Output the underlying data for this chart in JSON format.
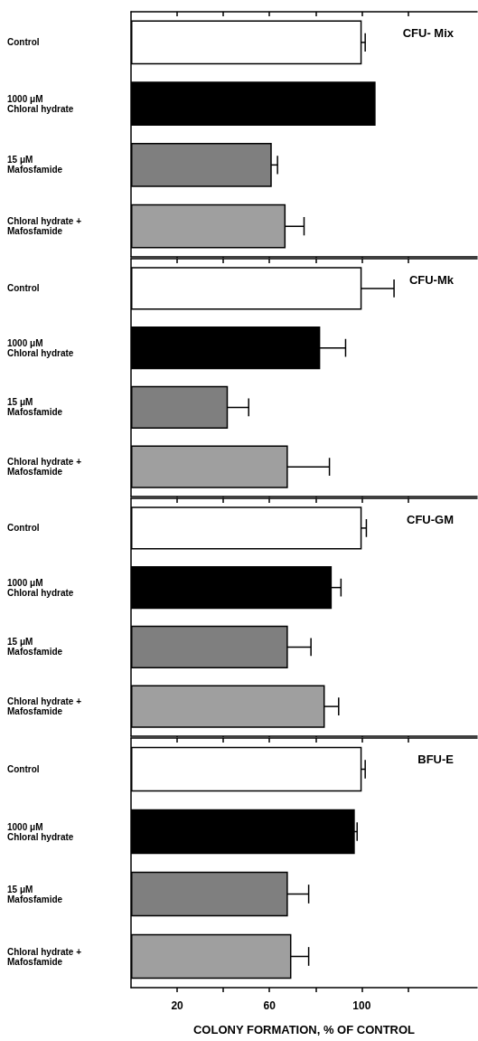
{
  "chart_data": [
    {
      "type": "bar",
      "orientation": "horizontal",
      "title": "CFU- Mix",
      "categories": [
        "Control",
        "1000 μM\nChloral hydrate",
        "15 μM\nMafosfamide",
        "Chloral hydrate +\nMafosfamide"
      ],
      "values": [
        100,
        106,
        61,
        67
      ],
      "errors": [
        1.5,
        null,
        2.5,
        8
      ],
      "colors": [
        "#ffffff",
        "#000000",
        "#7f7f7f",
        "#9f9f9f"
      ],
      "xlim": [
        0,
        150
      ],
      "xticks": [
        20,
        40,
        60,
        80,
        100,
        120
      ],
      "tick_labels": "y"
    },
    {
      "type": "bar",
      "orientation": "horizontal",
      "title": "CFU-Mk",
      "categories": [
        "Control",
        "1000 μM\nChloral hydrate",
        "15 μM\nMafosfamide",
        "Chloral hydrate +\nMafosfamide"
      ],
      "values": [
        100,
        82,
        42,
        68
      ],
      "errors": [
        14,
        11,
        9,
        18
      ],
      "colors": [
        "#ffffff",
        "#000000",
        "#7f7f7f",
        "#9f9f9f"
      ],
      "xlim": [
        0,
        150
      ],
      "xticks": [
        20,
        40,
        60,
        80,
        100,
        120
      ],
      "tick_labels": "y"
    },
    {
      "type": "bar",
      "orientation": "horizontal",
      "title": "CFU-GM",
      "categories": [
        "Control",
        "1000 μM\nChloral hydrate",
        "15 μM\nMafosfamide",
        "Chloral hydrate +\nMafosfamide"
      ],
      "values": [
        100,
        87,
        68,
        84
      ],
      "errors": [
        2,
        4,
        10,
        6
      ],
      "colors": [
        "#ffffff",
        "#000000",
        "#7f7f7f",
        "#9f9f9f"
      ],
      "xlim": [
        0,
        150
      ],
      "xticks": [
        20,
        40,
        60,
        80,
        100,
        120
      ],
      "tick_labels": "y"
    },
    {
      "type": "bar",
      "orientation": "horizontal",
      "title": "BFU-E",
      "xlabel": "COLONY FORMATION, % OF CONTROL",
      "categories": [
        "Control",
        "1000 μM\nChloral hydrate",
        "15 μM\nMafosfamide",
        "Chloral hydrate +\nMafosfamide"
      ],
      "values": [
        100,
        97,
        68,
        69.5
      ],
      "errors": [
        1.5,
        1,
        9,
        7.5
      ],
      "colors": [
        "#ffffff",
        "#000000",
        "#7f7f7f",
        "#9f9f9f"
      ],
      "xlim": [
        0,
        150
      ],
      "xticks": [
        {
          "value": 20,
          "label": "20"
        },
        {
          "value": 40,
          "label": null
        },
        {
          "value": 60,
          "label": "60"
        },
        {
          "value": 80,
          "label": null
        },
        {
          "value": 100,
          "label": "100"
        },
        {
          "value": 120,
          "label": null
        }
      ]
    }
  ]
}
